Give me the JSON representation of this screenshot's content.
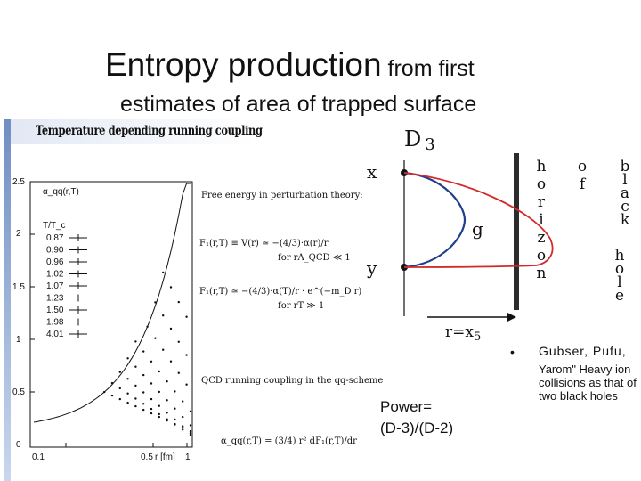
{
  "title": {
    "main": "Entropy production",
    "tail": " from first",
    "line2": "estimates of area of trapped surface"
  },
  "figure": {
    "header": "Temperature depending running coupling",
    "y_axis_label": "α_qq(r,T)",
    "y_ticks": [
      "2.5",
      "2",
      "1.5",
      "1",
      "0.5",
      "0"
    ],
    "x_ticks": [
      "0.1",
      "0.5",
      "r [fm]",
      "1"
    ],
    "legend_title": "T/T_c",
    "legend_values": [
      "0.87",
      "0.90",
      "0.96",
      "1.02",
      "1.07",
      "1.23",
      "1.50",
      "1.98",
      "4.01"
    ],
    "free_energy_caption": "Free energy in perturbation theory:",
    "eq1": "F₁(r,T) ≡ V(r) ≃ −(4/3)·α(r)/r",
    "eq1_cond": "for   rΛ_QCD ≪ 1",
    "eq2": "F₁(r,T) ≃ −(4/3)·α(T)/r · e^(−m_D r)",
    "eq2_cond": "for   rT ≫ 1",
    "qcd_caption": "QCD running coupling in the qq-scheme",
    "eq3": "α_qq(r,T) = (3/4) r² dF₁(r,T)/dr"
  },
  "diagram": {
    "d3": "D",
    "d3_sub": "3",
    "x_label": "x",
    "y_label": "y",
    "g_label": "g",
    "r_axis": "r=x",
    "r_axis_sub": "5",
    "horizon": "horizon",
    "of": "of",
    "black": "black",
    "hole": "hole"
  },
  "reference": {
    "bullet": "•",
    "line1": "Gubser, Pufu,",
    "line2": "Yarom\" Heavy ion collisions as that of two black holes"
  },
  "power": {
    "line1": "Power=",
    "line2": "(D-3)/(D-2)"
  },
  "colors": {
    "accent_blue": "#1f3f8a",
    "red": "#d22b2b",
    "figure_bar": "#6f8fc2"
  }
}
